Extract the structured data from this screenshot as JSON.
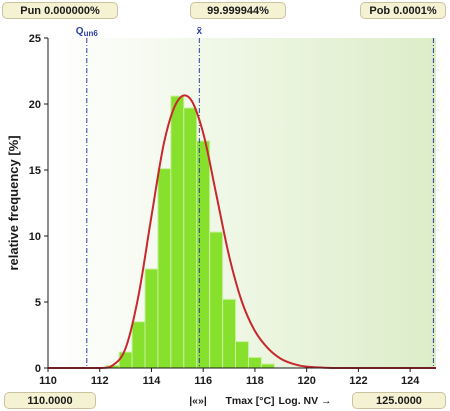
{
  "header": {
    "pun_label": "Pun 0.000000%",
    "center_label": "99.999944%",
    "pob_label": "Pob 0.0001%"
  },
  "footer": {
    "x_min_box": "110.0000",
    "x_max_box": "125.0000",
    "nav_symbol": "|«»|",
    "axis_label": "Tmax [°C]",
    "log_label": "Log. NV →"
  },
  "colors": {
    "bar_fill": "#86e02c",
    "bar_edge": "#c9f0a0",
    "curve": "#c8282d",
    "marker_line": "#2b3f9e",
    "plot_bg_start": "#ffffff",
    "plot_bg_end": "#dcedc8"
  },
  "chart_data": {
    "type": "bar",
    "ylabel": "relative frequency [%]",
    "xlim": [
      110,
      125
    ],
    "ylim": [
      0,
      25
    ],
    "x_ticks": [
      110,
      112,
      114,
      116,
      118,
      120,
      122,
      124
    ],
    "y_ticks": [
      0,
      5,
      10,
      15,
      20,
      25
    ],
    "bin_width": 0.5,
    "bins": [
      {
        "x": 112.5,
        "value": 0.2
      },
      {
        "x": 113.0,
        "value": 1.2
      },
      {
        "x": 113.5,
        "value": 3.5
      },
      {
        "x": 114.0,
        "value": 7.5
      },
      {
        "x": 114.5,
        "value": 15.1
      },
      {
        "x": 115.0,
        "value": 20.6
      },
      {
        "x": 115.5,
        "value": 19.7
      },
      {
        "x": 116.0,
        "value": 17.2
      },
      {
        "x": 116.5,
        "value": 10.3
      },
      {
        "x": 117.0,
        "value": 5.2
      },
      {
        "x": 117.5,
        "value": 2.0
      },
      {
        "x": 118.0,
        "value": 0.8
      },
      {
        "x": 118.5,
        "value": 0.3
      }
    ],
    "fit_curve": {
      "x": [
        110,
        112,
        112.5,
        113,
        113.5,
        114,
        114.5,
        115,
        115.5,
        116,
        116.5,
        117,
        117.5,
        118,
        118.5,
        119,
        119.5,
        120,
        121,
        122,
        125
      ],
      "y": [
        0,
        0,
        0.2,
        1.5,
        5.5,
        11.5,
        17.2,
        20.2,
        20.4,
        17.8,
        13.2,
        8.5,
        5.0,
        2.8,
        1.5,
        0.7,
        0.3,
        0.1,
        0,
        0,
        0
      ]
    },
    "markers": [
      {
        "label": "Q",
        "sub": "un6",
        "x": 111.5
      },
      {
        "label": "x̄",
        "x": 115.85
      },
      {
        "x": 124.9
      }
    ]
  }
}
